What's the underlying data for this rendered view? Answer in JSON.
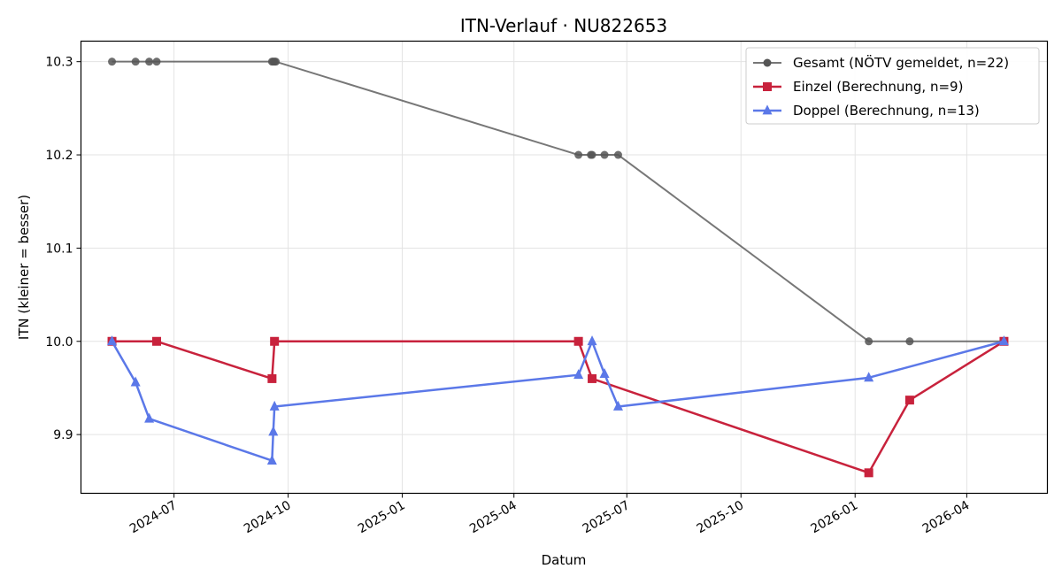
{
  "chart_data": {
    "type": "line",
    "title": "ITN-Verlauf · NU822653",
    "xlabel": "Datum",
    "ylabel": "ITN  (kleiner = besser)",
    "xlim": [
      "2024-04-17",
      "2026-06-05"
    ],
    "ylim": [
      9.837,
      10.322
    ],
    "x_ticks": [
      "2024-07",
      "2024-10",
      "2025-01",
      "2025-04",
      "2025-07",
      "2025-10",
      "2026-01",
      "2026-04"
    ],
    "y_ticks": [
      9.9,
      10.0,
      10.1,
      10.2,
      10.3
    ],
    "y_tick_labels": [
      "9.9",
      "10.0",
      "10.1",
      "10.2",
      "10.3"
    ],
    "grid": true,
    "legend_position": "top-right",
    "series": [
      {
        "name": "Gesamt (NÖTV gemeldet, n=22)",
        "color": "#555555",
        "marker": "circle",
        "x": [
          "2024-05-12",
          "2024-05-31",
          "2024-06-11",
          "2024-06-17",
          "2024-09-18",
          "2024-09-19",
          "2024-09-20",
          "2024-09-21",
          "2025-05-23",
          "2025-06-02",
          "2025-06-03",
          "2025-06-13",
          "2025-06-24",
          "2026-01-12",
          "2026-02-14",
          "2026-05-01"
        ],
        "values": [
          10.3,
          10.3,
          10.3,
          10.3,
          10.3,
          10.3,
          10.3,
          10.3,
          10.2,
          10.2,
          10.2,
          10.2,
          10.2,
          10.0,
          10.0,
          10.0
        ]
      },
      {
        "name": "Einzel (Berechnung, n=9)",
        "color": "#c8223c",
        "marker": "square",
        "x": [
          "2024-05-12",
          "2024-06-17",
          "2024-09-18",
          "2024-09-20",
          "2025-05-23",
          "2025-06-03",
          "2026-01-12",
          "2026-02-14",
          "2026-05-01"
        ],
        "values": [
          10.0,
          10.0,
          9.96,
          10.0,
          10.0,
          9.96,
          9.859,
          9.937,
          10.0
        ]
      },
      {
        "name": "Doppel (Berechnung, n=13)",
        "color": "#5b78e8",
        "marker": "triangle",
        "x": [
          "2024-05-12",
          "2024-05-31",
          "2024-06-11",
          "2024-09-18",
          "2024-09-19",
          "2024-09-20",
          "2025-05-23",
          "2025-06-03",
          "2025-06-13",
          "2025-06-24",
          "2026-01-12",
          "2026-05-01"
        ],
        "values": [
          10.0,
          9.956,
          9.917,
          9.872,
          9.903,
          9.93,
          9.964,
          10.0,
          9.965,
          9.93,
          9.961,
          10.0
        ]
      }
    ]
  }
}
